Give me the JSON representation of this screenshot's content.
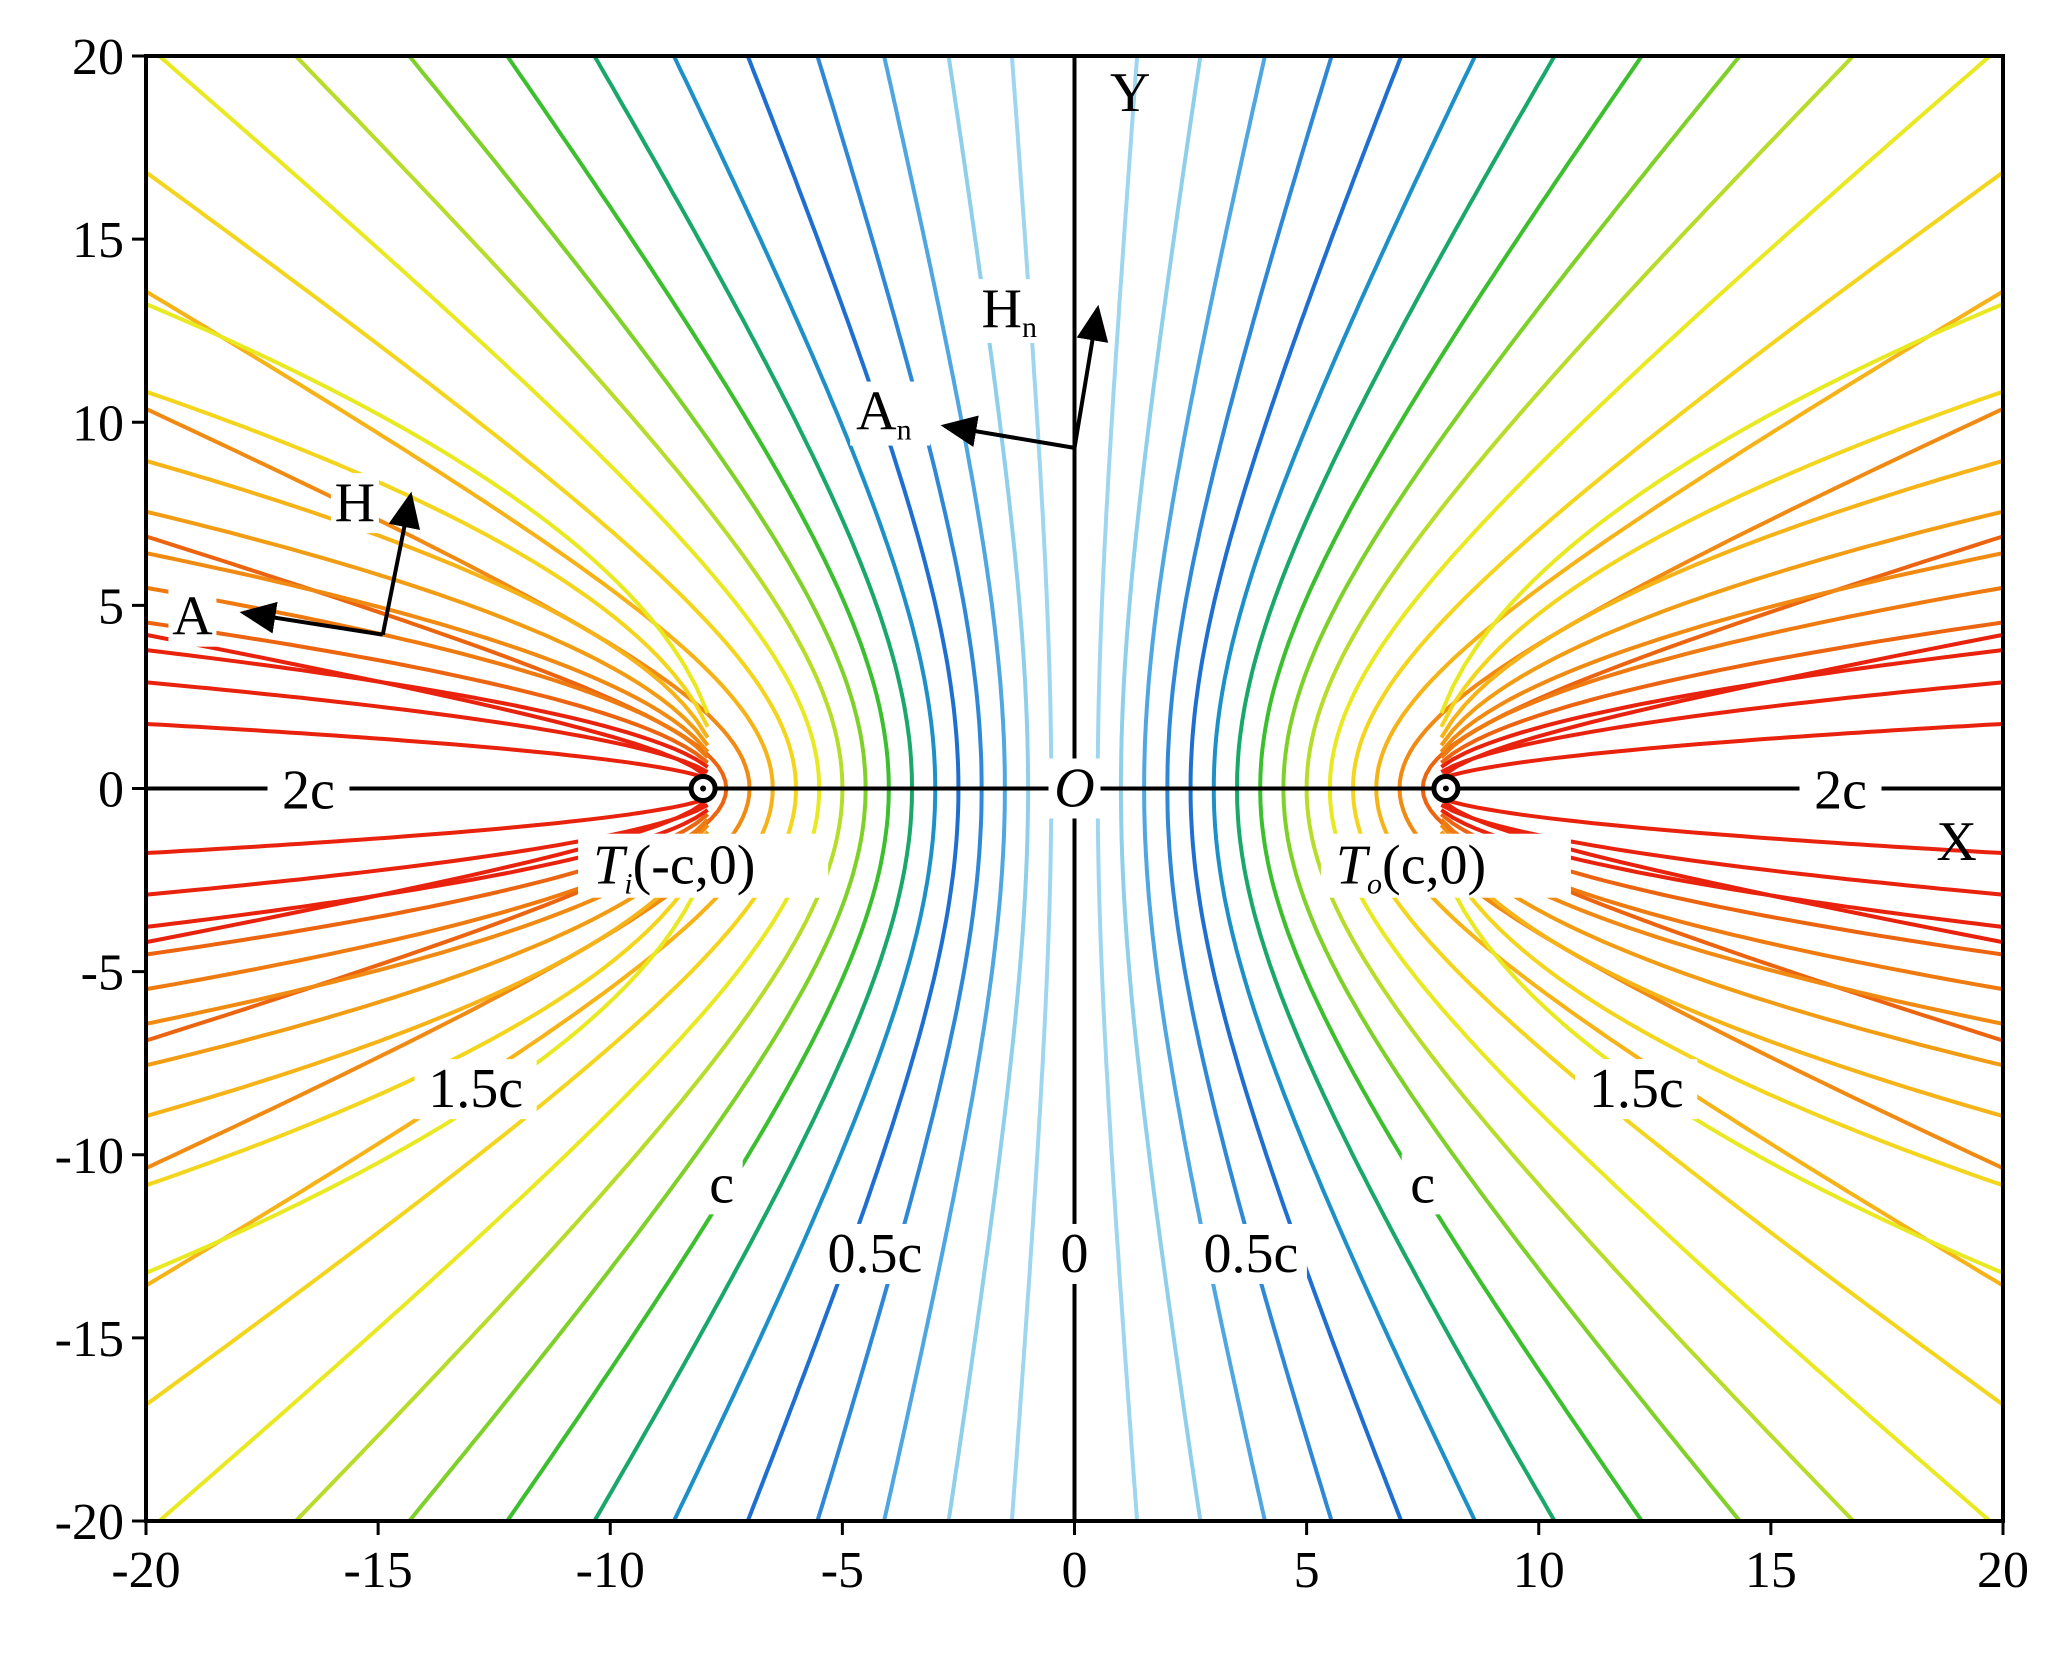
{
  "chart_data": {
    "type": "line",
    "title": "",
    "xlabel": "X",
    "ylabel": "Y",
    "xlim": [
      -20,
      20
    ],
    "ylim": [
      -20,
      20
    ],
    "x_ticks": [
      -20,
      -15,
      -10,
      -5,
      0,
      5,
      10,
      15,
      20
    ],
    "y_ticks": [
      -20,
      -15,
      -10,
      -5,
      0,
      5,
      10,
      15,
      20
    ],
    "grid": false,
    "legend": "none",
    "foci": {
      "c": 8,
      "left_label": "(-c,0)",
      "right_label": "(c,0)",
      "left_symbol": "T",
      "left_sub": "i",
      "right_symbol": "T",
      "right_sub": "o"
    },
    "origin_label": "O",
    "family": "confocal hyperbolas |x|/cos(theta) - y^2 stuff; each curve has vertex a on the X axis",
    "series": [
      {
        "a": 0.5,
        "color": "#9ed6ef"
      },
      {
        "a": 1.0,
        "color": "#8fcfe9"
      },
      {
        "a": 1.5,
        "color": "#4fa6e0"
      },
      {
        "a": 2.0,
        "color": "#2f88d6"
      },
      {
        "a": 2.5,
        "color": "#1f6fd0"
      },
      {
        "a": 3.0,
        "color": "#1e90c8"
      },
      {
        "a": 3.5,
        "color": "#19a86a"
      },
      {
        "a": 4.0,
        "color": "#3cbf2e"
      },
      {
        "a": 4.5,
        "color": "#7fd12a"
      },
      {
        "a": 5.0,
        "color": "#b7dc2a"
      },
      {
        "a": 5.5,
        "color": "#e9e922"
      },
      {
        "a": 6.0,
        "color": "#f3d51d"
      },
      {
        "a": 6.5,
        "color": "#f5b317"
      },
      {
        "a": 7.0,
        "color": "#f08a12"
      },
      {
        "a": 7.5,
        "color": "#ec640f"
      },
      {
        "a": 7.8,
        "color": "#e8220c"
      }
    ],
    "annotations": {
      "levels": {
        "zero": "0",
        "half": "0.5c",
        "one": "c",
        "one_half": "1.5c",
        "two": "2c"
      },
      "vector_A": "A",
      "vector_H": "H",
      "vector_An": "A",
      "vector_Hn": "H",
      "sub_n": "n"
    }
  }
}
